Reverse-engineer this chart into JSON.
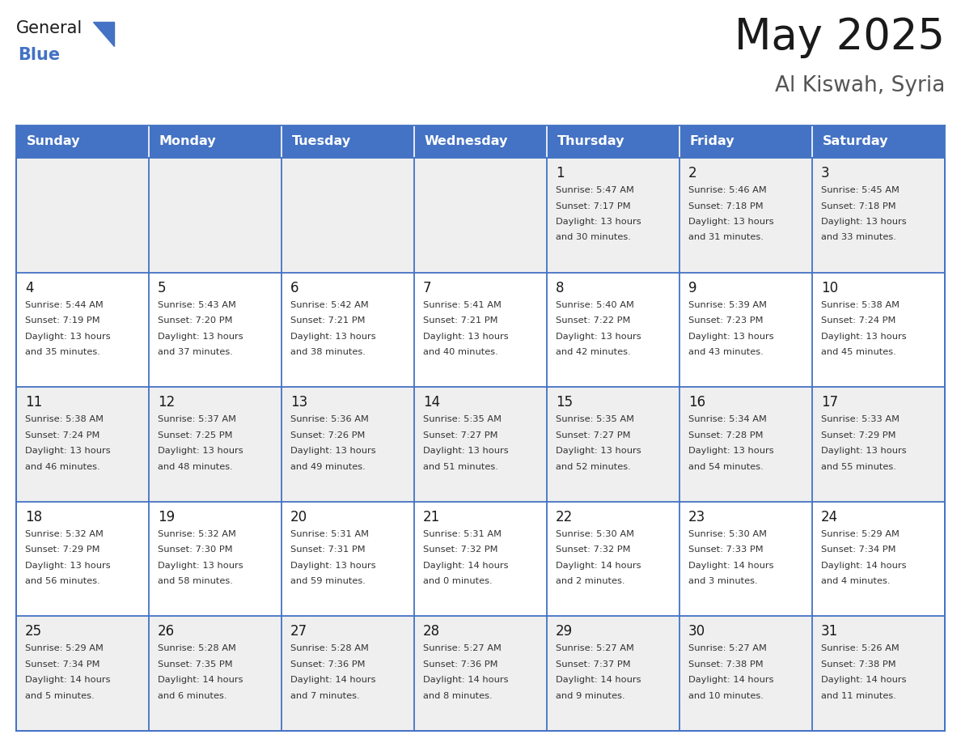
{
  "title": "May 2025",
  "subtitle": "Al Kiswah, Syria",
  "header_color": "#4472C4",
  "header_text_color": "#FFFFFF",
  "days_of_week": [
    "Sunday",
    "Monday",
    "Tuesday",
    "Wednesday",
    "Thursday",
    "Friday",
    "Saturday"
  ],
  "cell_bg_even": "#EFEFEF",
  "cell_bg_odd": "#FFFFFF",
  "text_color": "#333333",
  "day_num_color": "#1a1a1a",
  "border_color": "#4472C4",
  "logo_general_color": "#1a1a1a",
  "logo_blue_color": "#4472C4",
  "logo_triangle_color": "#4472C4",
  "title_color": "#1a1a1a",
  "subtitle_color": "#555555",
  "calendar_data": [
    [
      {
        "day": "",
        "sunrise": "",
        "sunset": "",
        "daylight": ""
      },
      {
        "day": "",
        "sunrise": "",
        "sunset": "",
        "daylight": ""
      },
      {
        "day": "",
        "sunrise": "",
        "sunset": "",
        "daylight": ""
      },
      {
        "day": "",
        "sunrise": "",
        "sunset": "",
        "daylight": ""
      },
      {
        "day": "1",
        "sunrise": "5:47 AM",
        "sunset": "7:17 PM",
        "daylight": "13 hours and 30 minutes."
      },
      {
        "day": "2",
        "sunrise": "5:46 AM",
        "sunset": "7:18 PM",
        "daylight": "13 hours and 31 minutes."
      },
      {
        "day": "3",
        "sunrise": "5:45 AM",
        "sunset": "7:18 PM",
        "daylight": "13 hours and 33 minutes."
      }
    ],
    [
      {
        "day": "4",
        "sunrise": "5:44 AM",
        "sunset": "7:19 PM",
        "daylight": "13 hours and 35 minutes."
      },
      {
        "day": "5",
        "sunrise": "5:43 AM",
        "sunset": "7:20 PM",
        "daylight": "13 hours and 37 minutes."
      },
      {
        "day": "6",
        "sunrise": "5:42 AM",
        "sunset": "7:21 PM",
        "daylight": "13 hours and 38 minutes."
      },
      {
        "day": "7",
        "sunrise": "5:41 AM",
        "sunset": "7:21 PM",
        "daylight": "13 hours and 40 minutes."
      },
      {
        "day": "8",
        "sunrise": "5:40 AM",
        "sunset": "7:22 PM",
        "daylight": "13 hours and 42 minutes."
      },
      {
        "day": "9",
        "sunrise": "5:39 AM",
        "sunset": "7:23 PM",
        "daylight": "13 hours and 43 minutes."
      },
      {
        "day": "10",
        "sunrise": "5:38 AM",
        "sunset": "7:24 PM",
        "daylight": "13 hours and 45 minutes."
      }
    ],
    [
      {
        "day": "11",
        "sunrise": "5:38 AM",
        "sunset": "7:24 PM",
        "daylight": "13 hours and 46 minutes."
      },
      {
        "day": "12",
        "sunrise": "5:37 AM",
        "sunset": "7:25 PM",
        "daylight": "13 hours and 48 minutes."
      },
      {
        "day": "13",
        "sunrise": "5:36 AM",
        "sunset": "7:26 PM",
        "daylight": "13 hours and 49 minutes."
      },
      {
        "day": "14",
        "sunrise": "5:35 AM",
        "sunset": "7:27 PM",
        "daylight": "13 hours and 51 minutes."
      },
      {
        "day": "15",
        "sunrise": "5:35 AM",
        "sunset": "7:27 PM",
        "daylight": "13 hours and 52 minutes."
      },
      {
        "day": "16",
        "sunrise": "5:34 AM",
        "sunset": "7:28 PM",
        "daylight": "13 hours and 54 minutes."
      },
      {
        "day": "17",
        "sunrise": "5:33 AM",
        "sunset": "7:29 PM",
        "daylight": "13 hours and 55 minutes."
      }
    ],
    [
      {
        "day": "18",
        "sunrise": "5:32 AM",
        "sunset": "7:29 PM",
        "daylight": "13 hours and 56 minutes."
      },
      {
        "day": "19",
        "sunrise": "5:32 AM",
        "sunset": "7:30 PM",
        "daylight": "13 hours and 58 minutes."
      },
      {
        "day": "20",
        "sunrise": "5:31 AM",
        "sunset": "7:31 PM",
        "daylight": "13 hours and 59 minutes."
      },
      {
        "day": "21",
        "sunrise": "5:31 AM",
        "sunset": "7:32 PM",
        "daylight": "14 hours and 0 minutes."
      },
      {
        "day": "22",
        "sunrise": "5:30 AM",
        "sunset": "7:32 PM",
        "daylight": "14 hours and 2 minutes."
      },
      {
        "day": "23",
        "sunrise": "5:30 AM",
        "sunset": "7:33 PM",
        "daylight": "14 hours and 3 minutes."
      },
      {
        "day": "24",
        "sunrise": "5:29 AM",
        "sunset": "7:34 PM",
        "daylight": "14 hours and 4 minutes."
      }
    ],
    [
      {
        "day": "25",
        "sunrise": "5:29 AM",
        "sunset": "7:34 PM",
        "daylight": "14 hours and 5 minutes."
      },
      {
        "day": "26",
        "sunrise": "5:28 AM",
        "sunset": "7:35 PM",
        "daylight": "14 hours and 6 minutes."
      },
      {
        "day": "27",
        "sunrise": "5:28 AM",
        "sunset": "7:36 PM",
        "daylight": "14 hours and 7 minutes."
      },
      {
        "day": "28",
        "sunrise": "5:27 AM",
        "sunset": "7:36 PM",
        "daylight": "14 hours and 8 minutes."
      },
      {
        "day": "29",
        "sunrise": "5:27 AM",
        "sunset": "7:37 PM",
        "daylight": "14 hours and 9 minutes."
      },
      {
        "day": "30",
        "sunrise": "5:27 AM",
        "sunset": "7:38 PM",
        "daylight": "14 hours and 10 minutes."
      },
      {
        "day": "31",
        "sunrise": "5:26 AM",
        "sunset": "7:38 PM",
        "daylight": "14 hours and 11 minutes."
      }
    ]
  ]
}
